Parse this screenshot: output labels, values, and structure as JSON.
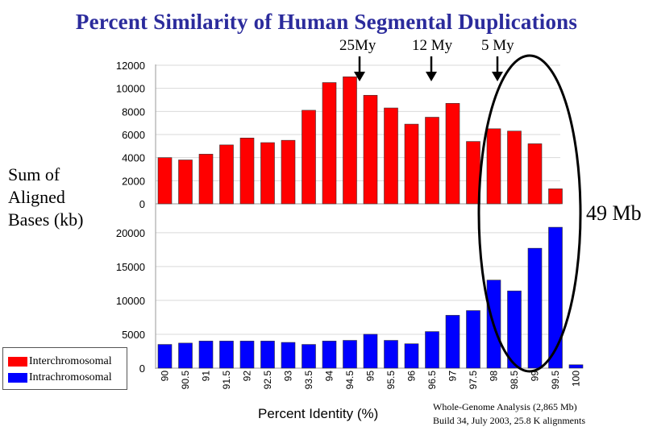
{
  "title": "Percent Similarity of  Human Segmental Duplications",
  "era_labels": [
    "25My",
    "12 My",
    "5 My"
  ],
  "y_axis_label_lines": [
    "Sum of",
    "Aligned",
    "Bases (kb)"
  ],
  "x_axis_label": "Percent Identity (%)",
  "highlight_annotation": "49 Mb",
  "footnote_lines": [
    "Whole-Genome Analysis (2,865 Mb)",
    "Build 34, July 2003, 25.8 K alignments"
  ],
  "legend": {
    "items": [
      {
        "label": "Interchromosomal",
        "color": "#ff0000"
      },
      {
        "label": "Intrachromosomal",
        "color": "#0000ff"
      }
    ]
  },
  "colors": {
    "title": "#2b2b9c",
    "interchromosomal": "#ff0000",
    "intrachromosomal": "#0000ff",
    "plot_grid": "#d9d9d9"
  },
  "chart_data": [
    {
      "type": "bar",
      "series": [
        {
          "name": "Interchromosomal",
          "values": [
            4000,
            3800,
            4300,
            5100,
            5700,
            5300,
            5500,
            8100,
            10500,
            11000,
            9400,
            8300,
            6900,
            7500,
            8700,
            5400,
            6500,
            6300,
            5200,
            1300
          ]
        }
      ],
      "categories": [
        "90",
        "90.5",
        "91",
        "91.5",
        "92",
        "92.5",
        "93",
        "93.5",
        "94",
        "94.5",
        "95",
        "95.5",
        "96",
        "96.5",
        "97",
        "97.5",
        "98",
        "98.5",
        "99",
        "99.5"
      ],
      "y_ticks": [
        0,
        2000,
        4000,
        6000,
        8000,
        10000,
        12000
      ],
      "ylim": [
        0,
        12000
      ],
      "grid": true
    },
    {
      "type": "bar",
      "series": [
        {
          "name": "Intrachromosomal",
          "values": [
            3500,
            3700,
            4000,
            4000,
            4000,
            4000,
            3800,
            3500,
            4000,
            4100,
            5000,
            4100,
            3600,
            5400,
            7800,
            8500,
            13000,
            11400,
            17700,
            20800,
            500
          ]
        }
      ],
      "categories": [
        "90",
        "90.5",
        "91",
        "91.5",
        "92",
        "92.5",
        "93",
        "93.5",
        "94",
        "94.5",
        "95",
        "95.5",
        "96",
        "96.5",
        "97",
        "97.5",
        "98",
        "98.5",
        "99",
        "99.5",
        "100"
      ],
      "tick_labels_visible": [
        "90",
        "90.5",
        "91",
        "91.5",
        "92",
        "92.5",
        "93",
        "93.5",
        "94",
        "94.5",
        "95",
        "95.5",
        "96",
        "96.5",
        "97",
        "97.5",
        "98",
        "98.5",
        "99",
        "99.5",
        "100"
      ],
      "y_ticks": [
        0,
        5000,
        10000,
        15000,
        20000
      ],
      "ylim": [
        0,
        22000
      ],
      "xlabel": "Percent Identity (%)",
      "grid": true
    }
  ]
}
